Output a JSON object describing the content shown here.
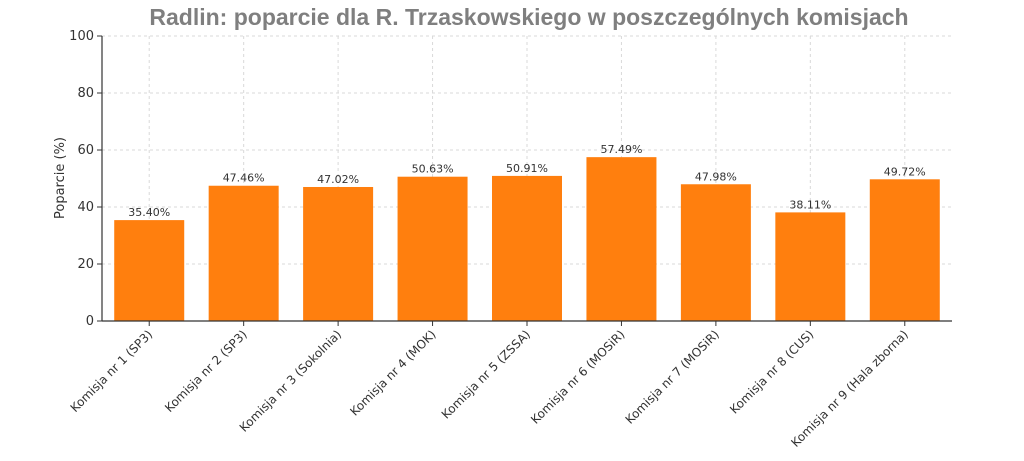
{
  "chart_data": {
    "type": "bar",
    "title": "Radlin: poparcie dla R. Trzaskowskiego w poszczególnych komisjach",
    "xlabel": "",
    "ylabel": "Poparcie (%)",
    "ylim": [
      0,
      100
    ],
    "yticks": [
      0,
      20,
      40,
      60,
      80,
      100
    ],
    "grid": true,
    "colors": {
      "bar": "#ff7f0e",
      "title": "#7f7f7f"
    },
    "categories": [
      "Komisja nr 1 (SP3)",
      "Komisja nr 2 (SP3)",
      "Komisja nr 3 (Sokolnia)",
      "Komisja nr 4 (MOK)",
      "Komisja nr 5 (ZSSA)",
      "Komisja nr 6 (MOSiR)",
      "Komisja nr 7 (MOSiR)",
      "Komisja nr 8 (CUS)",
      "Komisja nr 9 (Hala zborna)"
    ],
    "values": [
      35.4,
      47.46,
      47.02,
      50.63,
      50.91,
      57.49,
      47.98,
      38.11,
      49.72
    ],
    "data_labels": [
      "35.40%",
      "47.46%",
      "47.02%",
      "50.63%",
      "50.91%",
      "57.49%",
      "47.98%",
      "38.11%",
      "49.72%"
    ]
  }
}
